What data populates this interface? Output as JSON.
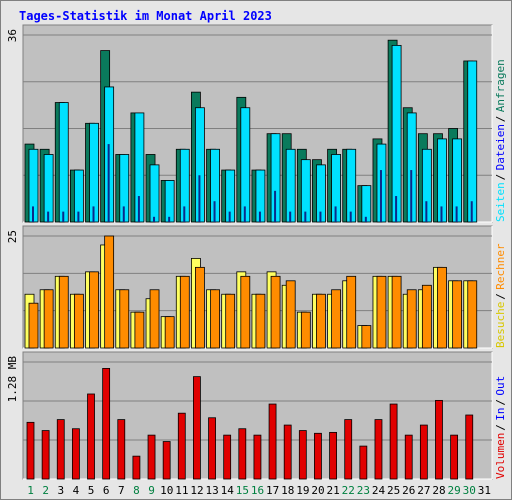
{
  "colors": {
    "visits_req": "#0a7a5c",
    "visits_files": "#00e1ff",
    "visits_pages": "#0a2a8a",
    "visits_series": "#ffff60",
    "hosts_series": "#ff8c00",
    "kbytes": "#e10000",
    "weekend": "#008040",
    "weekday": "#000000",
    "title": "#0000ff"
  },
  "chart_data": {
    "title": "Tages-Statistik im Monat April 2023",
    "type": "bar",
    "days": [
      "1",
      "2",
      "3",
      "4",
      "5",
      "6",
      "7",
      "8",
      "9",
      "10",
      "11",
      "12",
      "13",
      "14",
      "15",
      "16",
      "17",
      "18",
      "19",
      "20",
      "21",
      "22",
      "23",
      "24",
      "25",
      "26",
      "27",
      "28",
      "29",
      "30",
      "31"
    ],
    "weekend_days": [
      1,
      2,
      8,
      9,
      15,
      16,
      22,
      23,
      29,
      30
    ],
    "panels": [
      {
        "id": "hits",
        "ymax_label": "36",
        "ymax": 36,
        "right_labels": [
          "Anfragen",
          "/",
          "Dateien",
          "/",
          "Seiten"
        ],
        "series": [
          {
            "name": "Anfragen",
            "color": "#0a7a5c",
            "values": [
              15,
              14,
              23,
              10,
              19,
              33,
              13,
              21,
              13,
              8,
              14,
              25,
              14,
              10,
              24,
              10,
              17,
              17,
              14,
              12,
              14,
              14,
              7,
              16,
              35,
              22,
              17,
              17,
              18,
              31,
              0
            ]
          },
          {
            "name": "Dateien",
            "color": "#00e1ff",
            "values": [
              14,
              13,
              23,
              10,
              19,
              26,
              13,
              21,
              11,
              8,
              14,
              22,
              14,
              10,
              22,
              10,
              17,
              14,
              12,
              11,
              13,
              14,
              7,
              15,
              34,
              21,
              14,
              16,
              16,
              31,
              0
            ]
          },
          {
            "name": "Seiten",
            "color": "#0a2a8a",
            "values": [
              3,
              2,
              2,
              2,
              3,
              15,
              3,
              5,
              1,
              1,
              3,
              9,
              4,
              2,
              3,
              2,
              6,
              2,
              2,
              2,
              3,
              2,
              1,
              10,
              5,
              10,
              4,
              3,
              3,
              4,
              0
            ]
          }
        ]
      },
      {
        "id": "visits",
        "ymax_label": "25",
        "ymax": 25,
        "right_labels": [
          "Rechner",
          "/",
          "Besuche"
        ],
        "series": [
          {
            "name": "Besuche",
            "color": "#ffff60",
            "values": [
              12,
              13,
              16,
              12,
              17,
              23,
              13,
              8,
              11,
              7,
              16,
              20,
              13,
              12,
              17,
              12,
              17,
              14,
              8,
              12,
              12,
              15,
              5,
              16,
              16,
              12,
              13,
              18,
              15,
              15,
              0
            ]
          },
          {
            "name": "Rechner",
            "color": "#ff8c00",
            "values": [
              10,
              13,
              16,
              12,
              17,
              25,
              13,
              8,
              13,
              7,
              16,
              18,
              13,
              12,
              16,
              12,
              16,
              15,
              8,
              12,
              13,
              16,
              5,
              16,
              16,
              13,
              14,
              18,
              15,
              15,
              0
            ]
          }
        ]
      },
      {
        "id": "volume",
        "ymax_label": "1.28 MB",
        "ymax": 1.28,
        "right_labels": [
          "Out",
          "/",
          "In",
          "/",
          "Volumen"
        ],
        "series": [
          {
            "name": "Volumen",
            "color": "#e10000",
            "values": [
              0.62,
              0.53,
              0.65,
              0.55,
              0.93,
              1.21,
              0.65,
              0.25,
              0.48,
              0.41,
              0.72,
              1.12,
              0.67,
              0.48,
              0.55,
              0.48,
              0.82,
              0.59,
              0.53,
              0.5,
              0.51,
              0.65,
              0.36,
              0.65,
              0.82,
              0.48,
              0.59,
              0.86,
              0.48,
              0.7,
              0
            ]
          }
        ]
      }
    ]
  }
}
